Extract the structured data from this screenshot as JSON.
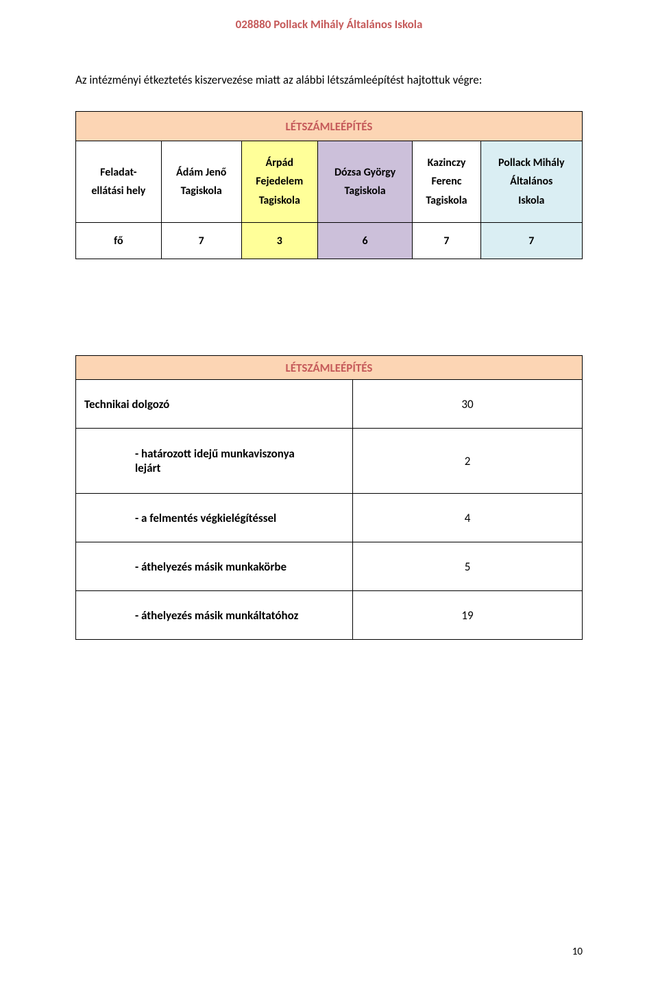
{
  "header": {
    "text": "028880 Pollack Mihály Általános Iskola",
    "color": "#c55a5a"
  },
  "intro_text": "Az intézményi étkeztetés kiszervezése miatt az alábbi létszámleépítést hajtottuk végre:",
  "table1": {
    "title": "LÉTSZÁMLEÉPÍTÉS",
    "title_bg": "#fcd5b4",
    "title_color": "#c55a5a",
    "row_label": "Feladat-ellátási hely",
    "data_label": "fő",
    "columns": [
      {
        "lines": [
          "Ádám Jenő",
          "Tagiskola"
        ],
        "bg": "#ffffff",
        "value": "7"
      },
      {
        "lines": [
          "Árpád",
          "Fejedelem",
          "Tagiskola"
        ],
        "bg": "#ffff99",
        "value": "3"
      },
      {
        "lines": [
          "Dózsa György",
          "Tagiskola"
        ],
        "bg": "#ccc0da",
        "value": "6"
      },
      {
        "lines": [
          "Kazinczy",
          "Ferenc",
          "Tagiskola"
        ],
        "bg": "#ffffff",
        "value": "7"
      },
      {
        "lines": [
          "Pollack Mihály",
          "Általános",
          "Iskola"
        ],
        "bg": "#daeef3",
        "value": "7"
      }
    ]
  },
  "table2": {
    "title": "LÉTSZÁMLEÉPÍTÉS",
    "title_bg": "#fcd5b4",
    "title_color": "#c55a5a",
    "rows": [
      {
        "indent": false,
        "label": "Technikai dolgozó",
        "value": "30",
        "tall": false
      },
      {
        "indent": true,
        "label_lines": [
          "- határozott  idejű munkaviszonya",
          "lejárt"
        ],
        "value": "2",
        "tall": true
      },
      {
        "indent": true,
        "label_lines": [
          "- a felmentés végkielégítéssel"
        ],
        "value": "4",
        "tall": false
      },
      {
        "indent": true,
        "label_lines": [
          "- áthelyezés másik munkakörbe"
        ],
        "value": "5",
        "tall": false
      },
      {
        "indent": true,
        "label_lines": [
          "- áthelyezés másik munkáltatóhoz"
        ],
        "value": "19",
        "tall": false
      }
    ]
  },
  "page_number": "10"
}
